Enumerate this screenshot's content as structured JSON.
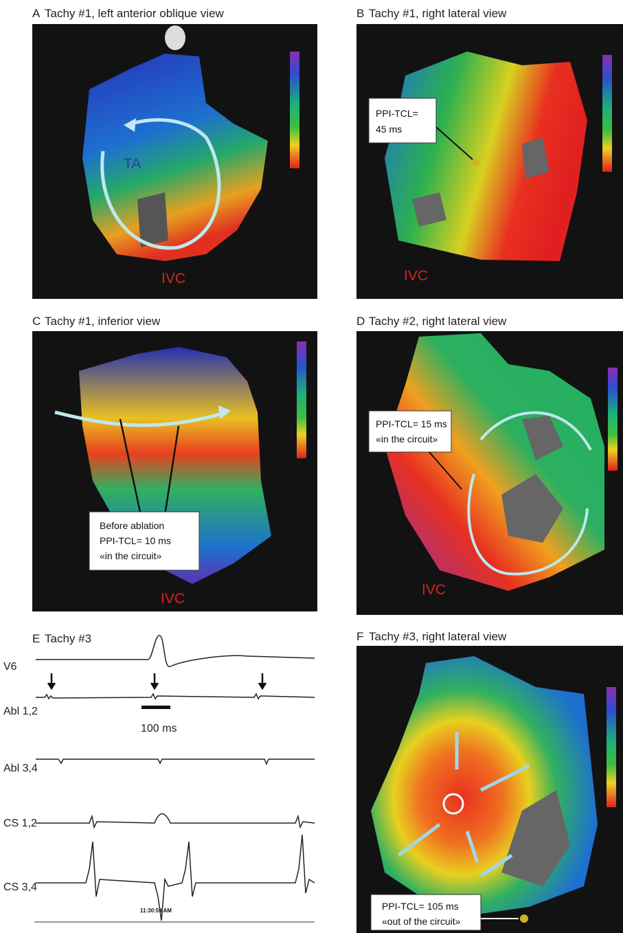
{
  "panels": [
    {
      "letter": "A",
      "title": "Tachy #1, left anterior oblique view",
      "labels": [
        "TA",
        "IVC"
      ]
    },
    {
      "letter": "B",
      "title": "Tachy #1, right lateral view",
      "callout": [
        "PPI-TCL=",
        "45 ms"
      ],
      "labels": [
        "IVC"
      ]
    },
    {
      "letter": "C",
      "title": "Tachy #1, inferior view",
      "callout": [
        "Before ablation",
        "PPI-TCL= 10 ms",
        "«in the circuit»"
      ],
      "labels": [
        "IVC"
      ]
    },
    {
      "letter": "D",
      "title": "Tachy #2, right lateral view",
      "callout": [
        "PPI-TCL= 15 ms",
        "«in the circuit»"
      ],
      "labels": [
        "IVC"
      ]
    },
    {
      "letter": "E",
      "title": "Tachy #3",
      "leads": [
        "V6",
        "Abl 1,2",
        "Abl 3,4",
        "CS 1,2",
        "CS 3,4"
      ],
      "scale_label": "100 ms",
      "timestamp": "11:30:59 AM"
    },
    {
      "letter": "F",
      "title": "Tachy #3, right lateral view",
      "callout": [
        "PPI-TCL= 105 ms",
        "«out of the circuit»"
      ]
    }
  ]
}
